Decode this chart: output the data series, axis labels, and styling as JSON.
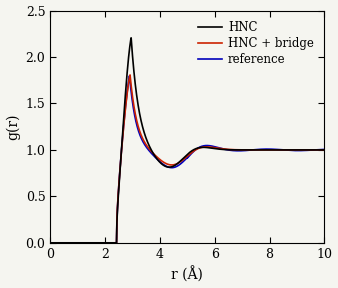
{
  "title": "",
  "xlabel": "r (Å)",
  "ylabel": "g(r)",
  "xlim": [
    0,
    10
  ],
  "ylim": [
    0,
    2.5
  ],
  "xticks": [
    0,
    2,
    4,
    6,
    8,
    10
  ],
  "yticks": [
    0,
    0.5,
    1,
    1.5,
    2,
    2.5
  ],
  "legend": [
    "HNC",
    "HNC + bridge",
    "reference"
  ],
  "colors": {
    "HNC": "#000000",
    "HNC_bridge": "#cc2200",
    "reference": "#0000bb"
  },
  "linewidths": {
    "HNC": 1.2,
    "HNC_bridge": 1.2,
    "reference": 1.2
  },
  "figsize": [
    3.38,
    2.88
  ],
  "dpi": 100,
  "background": "#f5f5f0"
}
